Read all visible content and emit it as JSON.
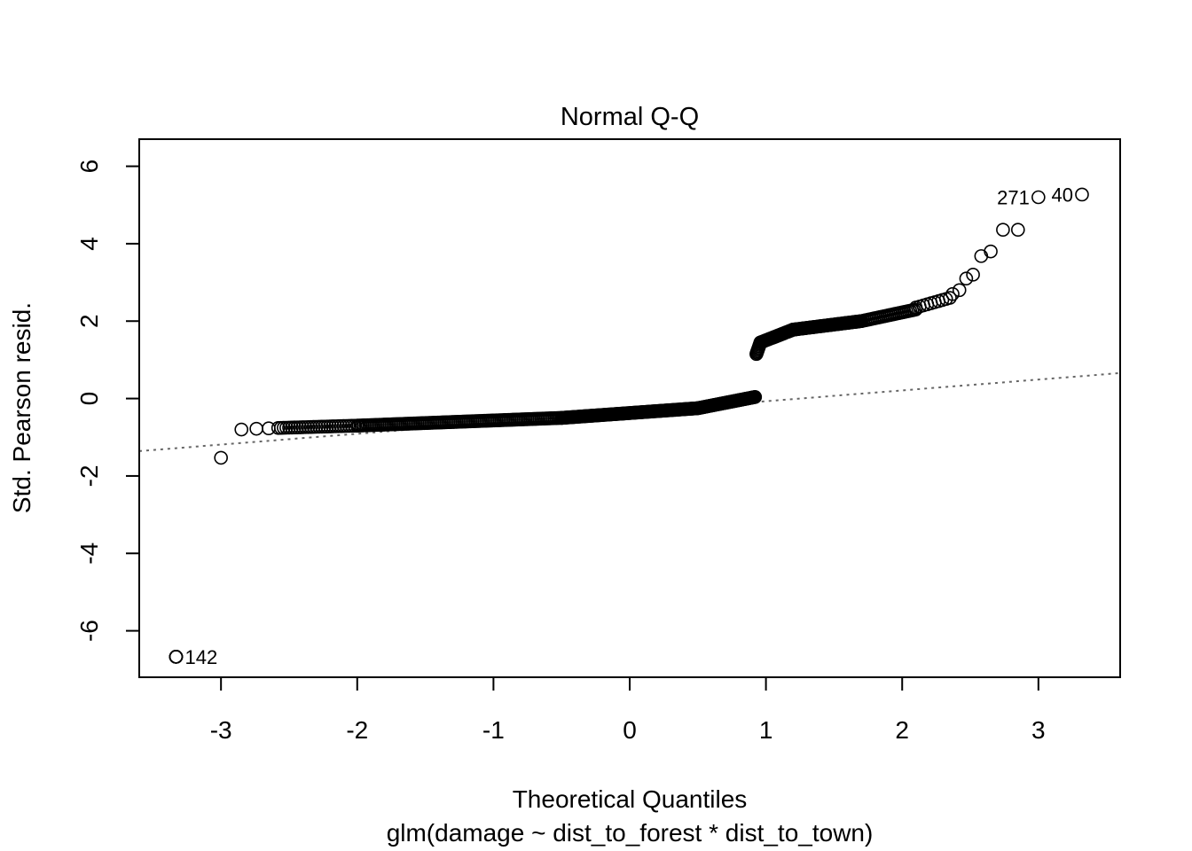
{
  "chart_data": {
    "type": "scatter",
    "title": "Normal Q-Q",
    "xlabel": "Theoretical Quantiles",
    "subtitle": "glm(damage ~ dist_to_forest * dist_to_town)",
    "ylabel": "Std. Pearson resid.",
    "xlim": [
      -3.6,
      3.6
    ],
    "ylim": [
      -7.2,
      6.7
    ],
    "xticks": [
      -3,
      -2,
      -1,
      0,
      1,
      2,
      3
    ],
    "xtick_labels": [
      "-3",
      "-2",
      "-1",
      "0",
      "1",
      "2",
      "3"
    ],
    "yticks": [
      -6,
      -4,
      -2,
      0,
      2,
      4,
      6
    ],
    "ytick_labels": [
      "-6",
      "-4",
      "-2",
      "0",
      "2",
      "4",
      "6"
    ],
    "reference_line": {
      "style": "dotted",
      "color": "#666666",
      "intercept": -0.35,
      "slope": 0.28
    },
    "point_style": {
      "marker": "open-circle",
      "color": "#000000"
    },
    "annotations": [
      {
        "text": "142",
        "x": -3.33,
        "y": -6.67,
        "position": "right"
      },
      {
        "text": "271",
        "x": 3.0,
        "y": 5.2,
        "position": "left"
      },
      {
        "text": "40",
        "x": 3.32,
        "y": 5.27,
        "position": "left"
      }
    ],
    "segments": [
      {
        "n": 8,
        "x": [
          -3.33,
          -3.33
        ],
        "y": [
          -6.67,
          -6.67
        ]
      },
      {
        "n": 1,
        "x": [
          -3.0,
          -3.0
        ],
        "y": [
          -1.53,
          -1.53
        ]
      },
      {
        "n": 1,
        "x": [
          -2.85,
          -2.85
        ],
        "y": [
          -0.8,
          -0.8
        ]
      },
      {
        "n": 1,
        "x": [
          -2.74,
          -2.74
        ],
        "y": [
          -0.78,
          -0.78
        ]
      },
      {
        "n": 1,
        "x": [
          -2.65,
          -2.65
        ],
        "y": [
          -0.77,
          -0.77
        ]
      },
      {
        "n": 30,
        "x": [
          -2.58,
          -2.0
        ],
        "y": [
          -0.76,
          -0.7
        ]
      },
      {
        "n": 120,
        "x": [
          -2.0,
          -0.5
        ],
        "y": [
          -0.7,
          -0.5
        ]
      },
      {
        "n": 140,
        "x": [
          -0.5,
          0.5
        ],
        "y": [
          -0.5,
          -0.25
        ]
      },
      {
        "n": 60,
        "x": [
          0.5,
          0.92
        ],
        "y": [
          -0.25,
          0.04
        ]
      },
      {
        "n": 10,
        "x": [
          0.93,
          0.96
        ],
        "y": [
          1.15,
          1.45
        ]
      },
      {
        "n": 30,
        "x": [
          0.96,
          1.2
        ],
        "y": [
          1.45,
          1.78
        ]
      },
      {
        "n": 70,
        "x": [
          1.2,
          1.7
        ],
        "y": [
          1.78,
          2.0
        ]
      },
      {
        "n": 30,
        "x": [
          1.7,
          2.1
        ],
        "y": [
          2.0,
          2.3
        ]
      },
      {
        "n": 10,
        "x": [
          2.1,
          2.35
        ],
        "y": [
          2.35,
          2.6
        ]
      }
    ],
    "points": [
      {
        "x": 2.37,
        "y": 2.7
      },
      {
        "x": 2.42,
        "y": 2.8
      },
      {
        "x": 2.47,
        "y": 3.1
      },
      {
        "x": 2.52,
        "y": 3.2
      },
      {
        "x": 2.58,
        "y": 3.68
      },
      {
        "x": 2.65,
        "y": 3.8
      },
      {
        "x": 2.74,
        "y": 4.36
      },
      {
        "x": 2.85,
        "y": 4.36
      },
      {
        "x": 3.0,
        "y": 5.2
      },
      {
        "x": 3.32,
        "y": 5.27
      }
    ]
  }
}
